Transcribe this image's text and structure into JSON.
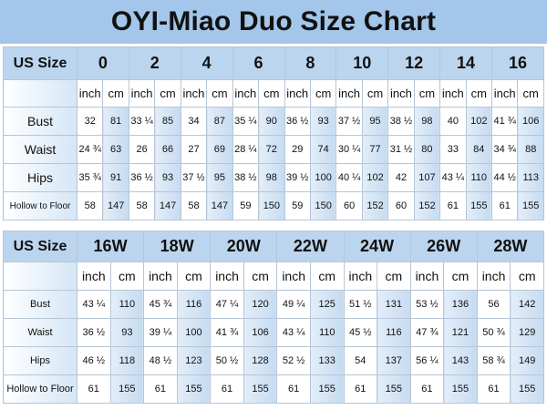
{
  "title": "OYI-Miao Duo Size Chart",
  "table1": {
    "corner": "US Size",
    "sizes": [
      "0",
      "2",
      "4",
      "6",
      "8",
      "10",
      "12",
      "14",
      "16"
    ],
    "units": [
      "inch",
      "cm"
    ],
    "rows": [
      {
        "label": "Bust",
        "values": [
          "32",
          "81",
          "33 ¼",
          "85",
          "34",
          "87",
          "35 ¼",
          "90",
          "36 ½",
          "93",
          "37 ½",
          "95",
          "38 ½",
          "98",
          "40",
          "102",
          "41 ¾",
          "106"
        ]
      },
      {
        "label": "Waist",
        "values": [
          "24 ¾",
          "63",
          "26",
          "66",
          "27",
          "69",
          "28 ¼",
          "72",
          "29",
          "74",
          "30 ¼",
          "77",
          "31 ½",
          "80",
          "33",
          "84",
          "34 ¾",
          "88"
        ]
      },
      {
        "label": "Hips",
        "values": [
          "35 ¾",
          "91",
          "36 ½",
          "93",
          "37 ½",
          "95",
          "38 ½",
          "98",
          "39 ½",
          "100",
          "40 ¼",
          "102",
          "42",
          "107",
          "43 ¼",
          "110",
          "44 ½",
          "113"
        ]
      },
      {
        "label": "Hollow to Floor",
        "values": [
          "58",
          "147",
          "58",
          "147",
          "58",
          "147",
          "59",
          "150",
          "59",
          "150",
          "60",
          "152",
          "60",
          "152",
          "61",
          "155",
          "61",
          "155"
        ]
      }
    ]
  },
  "table2": {
    "corner": "US Size",
    "sizes": [
      "16W",
      "18W",
      "20W",
      "22W",
      "24W",
      "26W",
      "28W"
    ],
    "units": [
      "inch",
      "cm"
    ],
    "rows": [
      {
        "label": "Bust",
        "values": [
          "43 ¼",
          "110",
          "45 ¾",
          "116",
          "47 ¼",
          "120",
          "49 ¼",
          "125",
          "51 ½",
          "131",
          "53 ½",
          "136",
          "56",
          "142"
        ]
      },
      {
        "label": "Waist",
        "values": [
          "36 ½",
          "93",
          "39 ¼",
          "100",
          "41 ¾",
          "106",
          "43 ¼",
          "110",
          "45 ½",
          "116",
          "47 ¾",
          "121",
          "50 ¾",
          "129"
        ]
      },
      {
        "label": "Hips",
        "values": [
          "46 ½",
          "118",
          "48 ½",
          "123",
          "50 ½",
          "128",
          "52 ½",
          "133",
          "54",
          "137",
          "56 ¼",
          "143",
          "58 ¾",
          "149"
        ]
      },
      {
        "label": "Hollow to Floor",
        "values": [
          "61",
          "155",
          "61",
          "155",
          "61",
          "155",
          "61",
          "155",
          "61",
          "155",
          "61",
          "155",
          "61",
          "155"
        ]
      }
    ]
  }
}
